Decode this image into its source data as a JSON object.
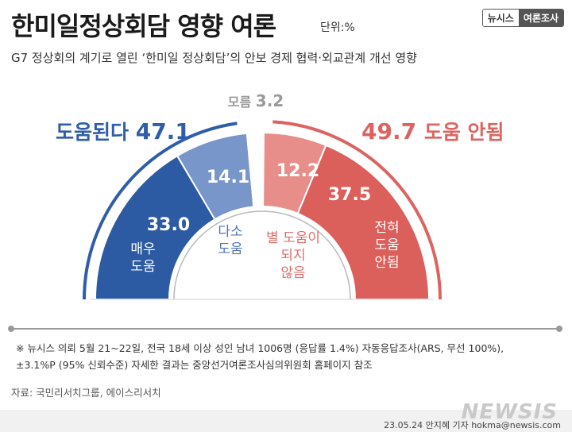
{
  "header": {
    "title": "한미일정상회담 영향 여론",
    "unit": "단위:%",
    "brand_left": "뉴시스",
    "brand_right": "여론조사",
    "subtitle": "G7 정상회의 계기로 열린 ‘한미일 정상회담’의 안보 경제 협력·외교관계 개선 영향"
  },
  "chart_data": {
    "type": "pie",
    "shape": "half-donut",
    "title": "한미일정상회담 영향 여론",
    "unit": "%",
    "groups": [
      {
        "name": "도움된다",
        "label": "도움된다",
        "value": "47.1",
        "color": "#2f5ea8"
      },
      {
        "name": "모름",
        "label": "모름",
        "value": "3.2",
        "color": "#9a9a9a"
      },
      {
        "name": "도움 안됨",
        "label": "도움 안됨",
        "value": "49.7",
        "color": "#dc6460"
      }
    ],
    "segments": [
      {
        "name": "매우 도움",
        "label_lines": [
          "매우",
          "도움"
        ],
        "value": 33.0,
        "value_text": "33.0",
        "color": "#2c5aa3",
        "label_color": "#ffffff"
      },
      {
        "name": "다소 도움",
        "label_lines": [
          "다소",
          "도움"
        ],
        "value": 14.1,
        "value_text": "14.1",
        "color": "#7896c9",
        "label_color": "#4f73b8"
      },
      {
        "name": "모름",
        "label_lines": [],
        "value": 3.2,
        "value_text": "3.2",
        "color": "#ffffff",
        "label_color": "#9a9a9a"
      },
      {
        "name": "별 도움이 되지 않음",
        "label_lines": [
          "별 도움이",
          "되지",
          "않음"
        ],
        "value": 12.2,
        "value_text": "12.2",
        "color": "#e78e8a",
        "label_color": "#e06c67"
      },
      {
        "name": "전혀 도움 안됨",
        "label_lines": [
          "전혀",
          "도움",
          "안됨"
        ],
        "value": 37.5,
        "value_text": "37.5",
        "color": "#db5f5a",
        "label_color": "#ffffff"
      }
    ]
  },
  "notes": {
    "line1": "※ 뉴시스 의뢰 5월 21~22일, 전국 18세 이상 성인 남녀 1006명 (응답률 1.4%) 자동응답조사(ARS, 무선 100%),",
    "line2": "±3.1%P (95% 신뢰수준) 자세한 결과는 중앙선거여론조사심의위원회 홈페이지 참조"
  },
  "source": "자료: 국민리서치그룹, 에이스리서치",
  "watermark": "NEWSIS",
  "credit": "23.05.24 안지혜 기자 hokma@newsis.com"
}
